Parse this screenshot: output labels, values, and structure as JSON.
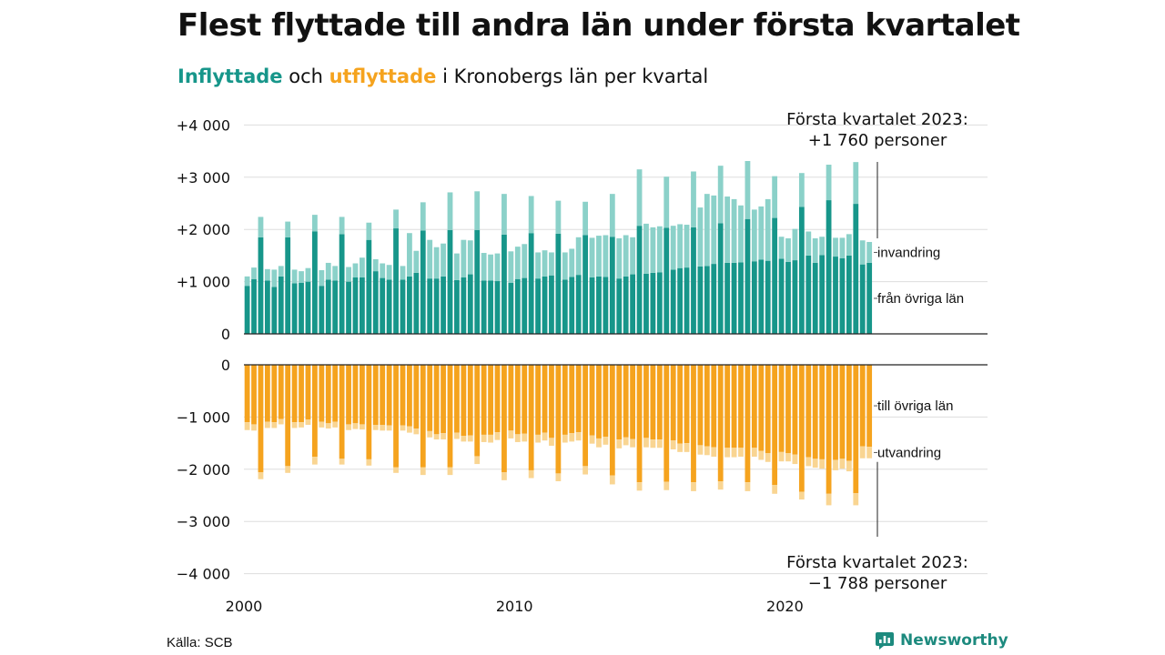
{
  "title": "Flest flyttade till andra län under första kvartalet",
  "subtitle": {
    "in_word": "Inflyttade",
    "and_word": " och ",
    "out_word": "utflyttade",
    "rest": " i Kronobergs län per kvartal"
  },
  "colors": {
    "in_domestic": "#17968a",
    "in_immigration": "#8bd1c9",
    "out_domestic": "#f5a31e",
    "out_emigration": "#f9d592",
    "grid": "#dddddd",
    "axis": "#222222"
  },
  "source": "Källa: SCB",
  "brand": {
    "name": "Newsworthy",
    "icon": "chart-bubble-icon"
  },
  "chart_data": [
    {
      "type": "bar",
      "stacked": true,
      "panel": "inflows",
      "x_start": "2000-Q1",
      "x_end": "2023-Q1",
      "x_ticks": [
        2000,
        2010,
        2020
      ],
      "y_ticks": [
        0,
        1000,
        2000,
        3000,
        4000
      ],
      "y_tick_labels": [
        "0",
        "+1 000",
        "+2 000",
        "+3 000",
        "+4 000"
      ],
      "ylim": [
        0,
        4000
      ],
      "grid": true,
      "annotation": {
        "line1": "Första kvartalet 2023:",
        "line2": "+1 760 personer"
      },
      "series": [
        {
          "name": "från övriga län",
          "values": [
            920,
            1050,
            1850,
            1020,
            900,
            1100,
            1850,
            970,
            980,
            1000,
            1960,
            920,
            1040,
            1020,
            1910,
            1000,
            1080,
            1080,
            1800,
            1200,
            1070,
            1040,
            2020,
            1040,
            1100,
            1170,
            1980,
            1060,
            1060,
            1100,
            1990,
            1030,
            1080,
            1140,
            1990,
            1020,
            1020,
            1010,
            1900,
            980,
            1050,
            1070,
            1930,
            1060,
            1100,
            1120,
            1920,
            1040,
            1090,
            1130,
            1890,
            1080,
            1100,
            1090,
            1860,
            1060,
            1100,
            1140,
            2070,
            1150,
            1170,
            1180,
            2030,
            1230,
            1260,
            1270,
            2040,
            1290,
            1300,
            1340,
            2120,
            1360,
            1360,
            1370,
            2200,
            1390,
            1420,
            1400,
            2220,
            1440,
            1380,
            1410,
            2430,
            1500,
            1360,
            1510,
            2560,
            1480,
            1450,
            1500,
            2490,
            1330,
            1360
          ]
        },
        {
          "name": "invandring",
          "values": [
            180,
            220,
            390,
            220,
            330,
            200,
            300,
            260,
            220,
            260,
            320,
            300,
            320,
            280,
            330,
            280,
            270,
            380,
            330,
            230,
            280,
            280,
            360,
            260,
            830,
            420,
            540,
            740,
            600,
            630,
            720,
            510,
            720,
            650,
            740,
            530,
            500,
            530,
            780,
            600,
            620,
            650,
            710,
            500,
            500,
            440,
            630,
            520,
            540,
            720,
            640,
            760,
            780,
            800,
            820,
            770,
            790,
            710,
            1080,
            960,
            870,
            880,
            980,
            840,
            840,
            820,
            1070,
            1130,
            1380,
            1310,
            1100,
            1270,
            1220,
            1090,
            1110,
            990,
            1020,
            1180,
            800,
            420,
            450,
            600,
            650,
            460,
            470,
            350,
            680,
            360,
            390,
            410,
            800,
            460,
            400
          ]
        }
      ]
    },
    {
      "type": "bar",
      "stacked": true,
      "panel": "outflows",
      "x_start": "2000-Q1",
      "x_end": "2023-Q1",
      "x_ticks": [
        2000,
        2010,
        2020
      ],
      "y_ticks": [
        0,
        -1000,
        -2000,
        -3000,
        -4000
      ],
      "y_tick_labels": [
        "0",
        "−1 000",
        "−2 000",
        "−3 000",
        "−4 000"
      ],
      "ylim": [
        -4000,
        0
      ],
      "grid": true,
      "annotation": {
        "line1": "Första kvartalet 2023:",
        "line2": "−1 788 personer"
      },
      "series": [
        {
          "name": "till övriga län",
          "values": [
            -1100,
            -1140,
            -2060,
            -1090,
            -1100,
            -1040,
            -1940,
            -1100,
            -1100,
            -1050,
            -1760,
            -1090,
            -1120,
            -1090,
            -1800,
            -1140,
            -1120,
            -1140,
            -1810,
            -1150,
            -1150,
            -1160,
            -1960,
            -1160,
            -1180,
            -1220,
            -1960,
            -1270,
            -1330,
            -1310,
            -1960,
            -1300,
            -1360,
            -1350,
            -1750,
            -1340,
            -1340,
            -1290,
            -2060,
            -1260,
            -1330,
            -1320,
            -2020,
            -1340,
            -1300,
            -1400,
            -2080,
            -1340,
            -1310,
            -1290,
            -1940,
            -1350,
            -1410,
            -1380,
            -2120,
            -1430,
            -1390,
            -1420,
            -2250,
            -1400,
            -1430,
            -1430,
            -2240,
            -1450,
            -1510,
            -1500,
            -2250,
            -1540,
            -1560,
            -1580,
            -2230,
            -1590,
            -1590,
            -1590,
            -2250,
            -1590,
            -1650,
            -1690,
            -2300,
            -1670,
            -1690,
            -1720,
            -2430,
            -1770,
            -1800,
            -1810,
            -2470,
            -1820,
            -1800,
            -1840,
            -2460,
            -1560,
            -1570
          ]
        },
        {
          "name": "utvandring",
          "values": [
            -150,
            -120,
            -130,
            -120,
            -110,
            -100,
            -130,
            -110,
            -100,
            -100,
            -150,
            -110,
            -100,
            -110,
            -110,
            -110,
            -110,
            -100,
            -120,
            -100,
            -110,
            -100,
            -110,
            -100,
            -120,
            -110,
            -150,
            -120,
            -100,
            -120,
            -150,
            -120,
            -110,
            -120,
            -150,
            -140,
            -150,
            -150,
            -150,
            -150,
            -150,
            -150,
            -150,
            -150,
            -150,
            -150,
            -150,
            -150,
            -160,
            -160,
            -160,
            -160,
            -170,
            -150,
            -170,
            -170,
            -150,
            -160,
            -160,
            -180,
            -160,
            -160,
            -160,
            -170,
            -160,
            -170,
            -170,
            -180,
            -170,
            -180,
            -160,
            -180,
            -180,
            -170,
            -170,
            -170,
            -170,
            -170,
            -170,
            -180,
            -160,
            -180,
            -150,
            -170,
            -170,
            -180,
            -220,
            -200,
            -190,
            -200,
            -230,
            -230,
            -220
          ]
        }
      ]
    }
  ]
}
